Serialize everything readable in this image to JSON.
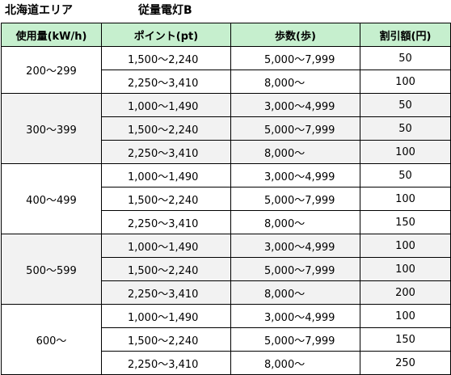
{
  "header": {
    "region": "北海道エリア",
    "plan": "従量電灯B"
  },
  "columns": {
    "usage": "使用量(kW/h)",
    "points": "ポイント(pt)",
    "steps": "歩数(歩)",
    "discount": "割引額(円)"
  },
  "groups": [
    {
      "usage": "200〜299",
      "rows": [
        {
          "points": "1,500〜2,240",
          "steps": "5,000〜7,999",
          "discount": "50"
        },
        {
          "points": "2,250〜3,410",
          "steps": "8,000〜",
          "discount": "100"
        }
      ]
    },
    {
      "usage": "300〜399",
      "rows": [
        {
          "points": "1,000〜1,490",
          "steps": "3,000〜4,999",
          "discount": "50"
        },
        {
          "points": "1,500〜2,240",
          "steps": "5,000〜7,999",
          "discount": "50"
        },
        {
          "points": "2,250〜3,410",
          "steps": "8,000〜",
          "discount": "100"
        }
      ]
    },
    {
      "usage": "400〜499",
      "rows": [
        {
          "points": "1,000〜1,490",
          "steps": "3,000〜4,999",
          "discount": "50"
        },
        {
          "points": "1,500〜2,240",
          "steps": "5,000〜7,999",
          "discount": "100"
        },
        {
          "points": "2,250〜3,410",
          "steps": "8,000〜",
          "discount": "150"
        }
      ]
    },
    {
      "usage": "500〜599",
      "rows": [
        {
          "points": "1,000〜1,490",
          "steps": "3,000〜4,999",
          "discount": "100"
        },
        {
          "points": "1,500〜2,240",
          "steps": "5,000〜7,999",
          "discount": "100"
        },
        {
          "points": "2,250〜3,410",
          "steps": "8,000〜",
          "discount": "200"
        }
      ]
    },
    {
      "usage": "600〜",
      "rows": [
        {
          "points": "1,000〜1,490",
          "steps": "3,000〜4,999",
          "discount": "100"
        },
        {
          "points": "1,500〜2,240",
          "steps": "5,000〜7,999",
          "discount": "150"
        },
        {
          "points": "2,250〜3,410",
          "steps": "8,000〜",
          "discount": "250"
        }
      ]
    }
  ]
}
